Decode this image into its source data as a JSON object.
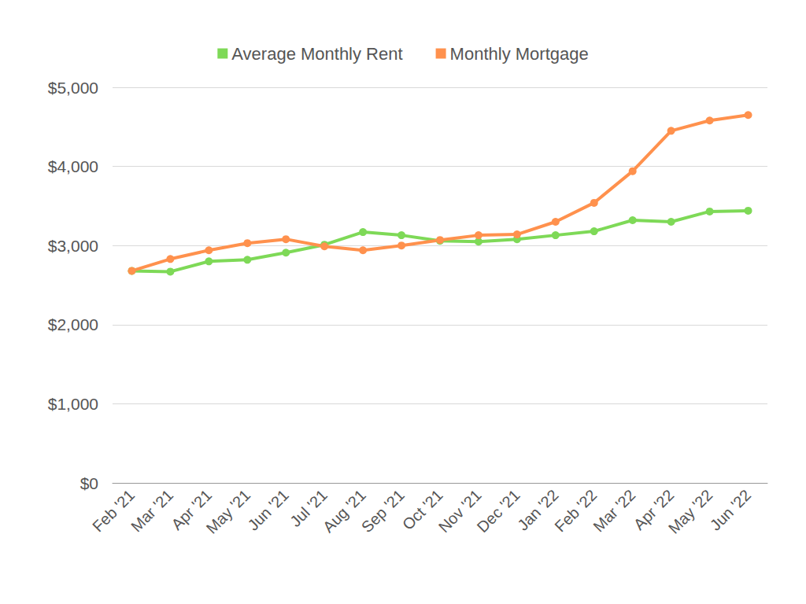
{
  "chart_data": {
    "type": "line",
    "categories": [
      "Feb '21",
      "Mar '21",
      "Apr '21",
      "May '21",
      "Jun '21",
      "Jul '21",
      "Aug '21",
      "Sep '21",
      "Oct '21",
      "Nov '21",
      "Dec '21",
      "Jan '22",
      "Feb '22",
      "Mar '22",
      "Apr '22",
      "May '22",
      "Jun '22"
    ],
    "series": [
      {
        "name": "Average Monthly Rent",
        "color": "#7ed957",
        "marker": "circle",
        "values": [
          2680,
          2670,
          2800,
          2820,
          2910,
          3010,
          3170,
          3130,
          3060,
          3050,
          3080,
          3130,
          3180,
          3320,
          3300,
          3430,
          3440
        ]
      },
      {
        "name": "Monthly Mortgage",
        "color": "#ff914d",
        "marker": "circle",
        "values": [
          2680,
          2830,
          2940,
          3030,
          3080,
          2990,
          2940,
          3000,
          3070,
          3130,
          3140,
          3300,
          3540,
          3940,
          4450,
          4580,
          4650
        ]
      }
    ],
    "ylim": [
      0,
      5000
    ],
    "yticks": [
      {
        "value": 0,
        "label": "$0"
      },
      {
        "value": 1000,
        "label": "$1,000"
      },
      {
        "value": 2000,
        "label": "$2,000"
      },
      {
        "value": 3000,
        "label": "$3,000"
      },
      {
        "value": 4000,
        "label": "$4,000"
      },
      {
        "value": 5000,
        "label": "$5,000"
      }
    ],
    "grid": true,
    "legend": "top"
  }
}
